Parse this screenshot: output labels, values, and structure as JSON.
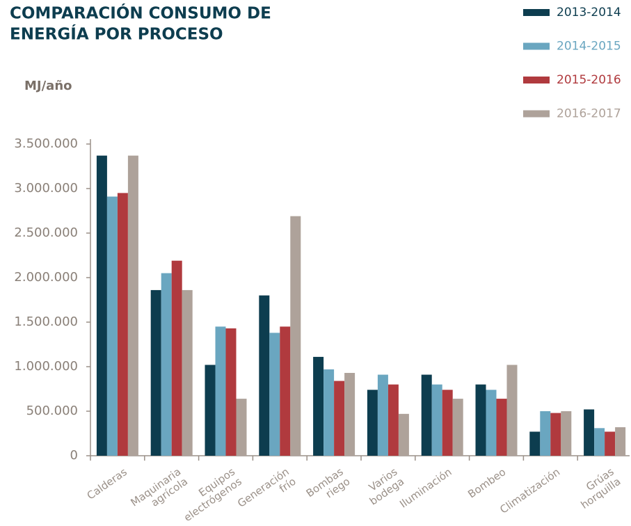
{
  "chart_data": {
    "type": "bar",
    "title": [
      "COMPARACIÓN CONSUMO DE",
      "ENERGÍA POR PROCESO"
    ],
    "y_label": "MJ/año",
    "categories": [
      [
        "Calderas"
      ],
      [
        "Maquinaria",
        "agrícola"
      ],
      [
        "Equipos",
        "electrógenos"
      ],
      [
        "Generación",
        "frío"
      ],
      [
        "Bombas",
        "riego"
      ],
      [
        "Varios",
        "bodega"
      ],
      [
        "Iluminación"
      ],
      [
        "Bombeo"
      ],
      [
        "Climatización"
      ],
      [
        "Grúas",
        "horquilla"
      ]
    ],
    "series": [
      {
        "name": "2013-2014",
        "color": "#0d3d4f",
        "values": [
          3370000,
          1860000,
          1020000,
          1800000,
          1110000,
          740000,
          910000,
          800000,
          270000,
          520000
        ]
      },
      {
        "name": "2014-2015",
        "color": "#6aa6c0",
        "values": [
          2910000,
          2050000,
          1450000,
          1380000,
          970000,
          910000,
          800000,
          740000,
          500000,
          310000
        ]
      },
      {
        "name": "2015-2016",
        "color": "#b03a3e",
        "values": [
          2950000,
          2190000,
          1430000,
          1450000,
          840000,
          800000,
          740000,
          640000,
          480000,
          270000
        ]
      },
      {
        "name": "2016-2017",
        "color": "#aea29a",
        "values": [
          3370000,
          1860000,
          640000,
          2690000,
          930000,
          470000,
          640000,
          1020000,
          500000,
          320000
        ]
      }
    ],
    "ylim": [
      0,
      3500000
    ],
    "yticks": [
      0,
      {
        "value": 500000,
        "label": "500.000"
      },
      {
        "value": 1000000,
        "label": "1.000.000"
      },
      {
        "value": 1500000,
        "label": "1.500.000"
      },
      {
        "value": 2000000,
        "label": "2.000.000"
      },
      {
        "value": 2500000,
        "label": "2.500.000"
      },
      {
        "value": 3000000,
        "label": "3.000.000"
      },
      {
        "value": 3500000,
        "label": "3.500.000"
      }
    ],
    "legend": "top-right",
    "grid": false
  }
}
